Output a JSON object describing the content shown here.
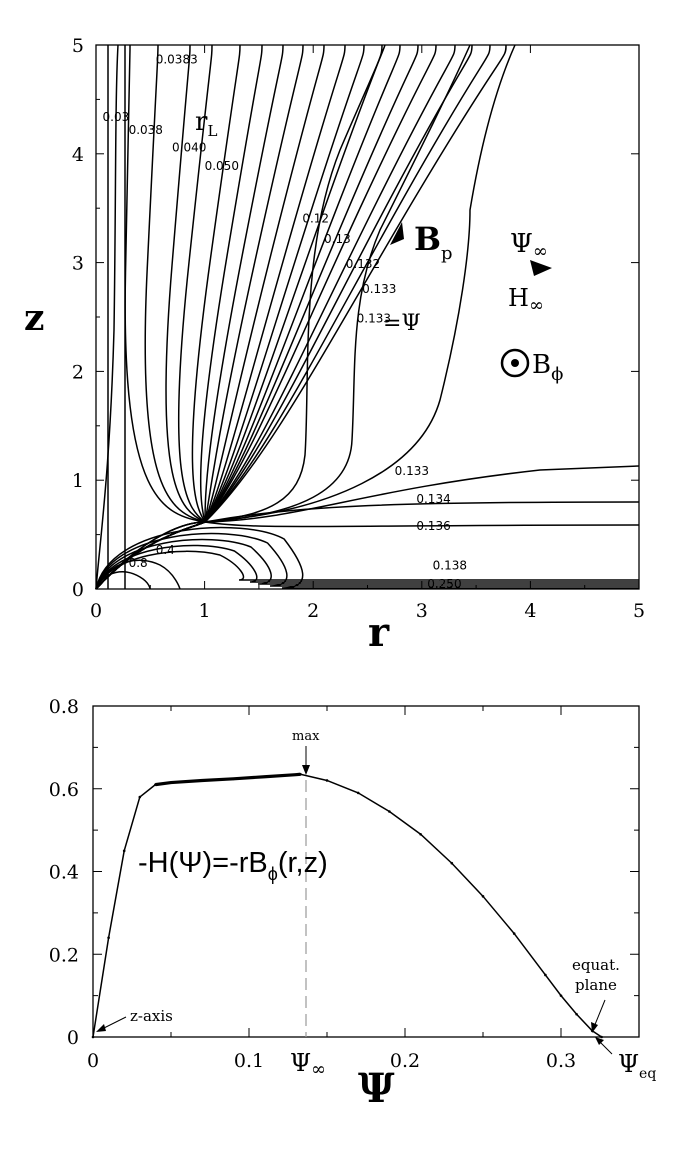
{
  "chart_data": [
    {
      "type": "line",
      "xlabel": "r",
      "ylabel": "z",
      "xlim": [
        0,
        5
      ],
      "ylim": [
        0,
        5
      ],
      "xticks": [
        "0",
        "1",
        "2",
        "3",
        "4",
        "5"
      ],
      "yticks": [
        "0",
        "1",
        "2",
        "3",
        "4",
        "5"
      ],
      "contour_labels": [
        {
          "text": "0.0383",
          "r": 0.55,
          "z": 4.83
        },
        {
          "text": "0.03",
          "r": 0.06,
          "z": 4.3
        },
        {
          "text": "0.038",
          "r": 0.3,
          "z": 4.18
        },
        {
          "text": "0.040",
          "r": 0.7,
          "z": 4.02
        },
        {
          "text": "0.050",
          "r": 1.0,
          "z": 3.85
        },
        {
          "text": "0.12",
          "r": 1.9,
          "z": 3.37
        },
        {
          "text": "0.13",
          "r": 2.1,
          "z": 3.18
        },
        {
          "text": "0.132",
          "r": 2.3,
          "z": 2.95
        },
        {
          "text": "0.133",
          "r": 2.45,
          "z": 2.72
        },
        {
          "text": "0.133",
          "r": 2.4,
          "z": 2.45
        },
        {
          "text": "0.133",
          "r": 2.75,
          "z": 1.05
        },
        {
          "text": "0.134",
          "r": 2.95,
          "z": 0.79
        },
        {
          "text": "0.136",
          "r": 2.95,
          "z": 0.54
        },
        {
          "text": "0.138",
          "r": 3.1,
          "z": 0.18
        },
        {
          "text": "0.250",
          "r": 3.05,
          "z": 0.01
        },
        {
          "text": "0.8",
          "r": 0.3,
          "z": 0.2
        },
        {
          "text": "0.4",
          "r": 0.55,
          "z": 0.32
        }
      ],
      "annotations": {
        "rL": "r",
        "rL_sub": "L",
        "psi_eq": "=Ψ",
        "Bp": "B",
        "Bp_sub": "p",
        "psi_inf": "Ψ",
        "psi_inf_sub": "∞",
        "H_inf": "H",
        "H_inf_sub": "∞",
        "Bphi": "B",
        "Bphi_sub": "ϕ"
      }
    },
    {
      "type": "line",
      "xlabel": "Ψ",
      "ylabel": "",
      "xlim": [
        0,
        0.35
      ],
      "ylim": [
        0,
        0.8
      ],
      "xticks": [
        "0",
        "0.1",
        "0.2",
        "0.3"
      ],
      "yticks": [
        "0",
        "0.2",
        "0.4",
        "0.6",
        "0.8"
      ],
      "series": [
        {
          "x": [
            0,
            0.01,
            0.02,
            0.03,
            0.04,
            0.05,
            0.07,
            0.09,
            0.11,
            0.13,
            0.133,
            0.15,
            0.17,
            0.19,
            0.21,
            0.23,
            0.25,
            0.27,
            0.29,
            0.3,
            0.31,
            0.32,
            0.326
          ],
          "y": [
            0,
            0.24,
            0.45,
            0.58,
            0.61,
            0.615,
            0.62,
            0.624,
            0.629,
            0.634,
            0.635,
            0.62,
            0.59,
            0.545,
            0.49,
            0.42,
            0.34,
            0.25,
            0.15,
            0.1,
            0.055,
            0.015,
            0
          ]
        }
      ],
      "formula": "-H(Ψ)=-rB",
      "formula_sub": "ϕ",
      "formula_tail": "(r,z)",
      "annotations": {
        "max": "max",
        "z_axis": "z-axis",
        "equat": "equat.",
        "plane": "plane",
        "psi_inf_tick": "Ψ",
        "psi_inf_tick_sub": "∞",
        "psi_eq": "Ψ",
        "psi_eq_sub": "eq"
      }
    }
  ]
}
